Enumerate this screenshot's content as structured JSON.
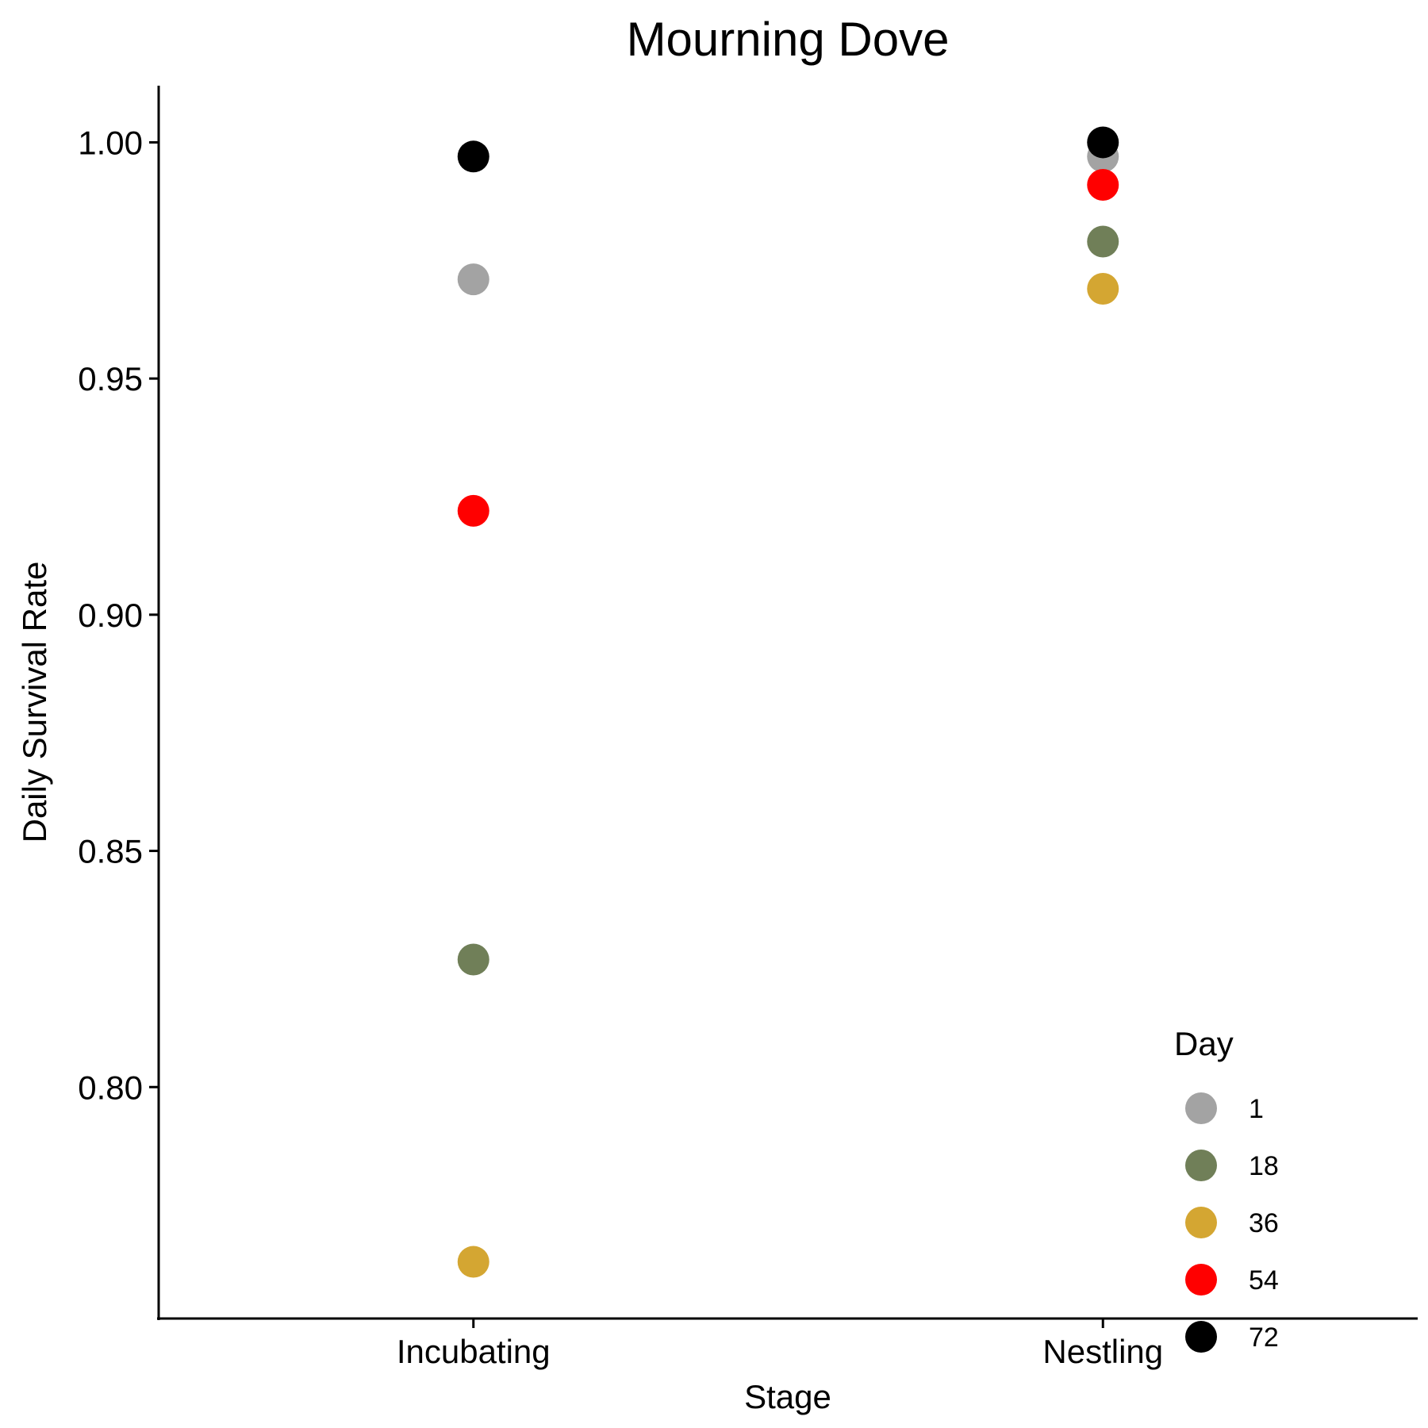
{
  "chart_data": {
    "type": "scatter",
    "title": "Mourning Dove",
    "xlabel": "Stage",
    "ylabel": "Daily Survival Rate",
    "categories": [
      "Incubating",
      "Nestling"
    ],
    "ylim": [
      0.751,
      1.012
    ],
    "yticks": [
      "0.80",
      "0.85",
      "0.90",
      "0.95",
      "1.00"
    ],
    "grid": false,
    "legend": {
      "title": "Day",
      "position": "bottom-right"
    },
    "series": [
      {
        "name": "1",
        "color": "#A3A3A3",
        "values": [
          0.971,
          0.997
        ]
      },
      {
        "name": "18",
        "color": "#707F58",
        "values": [
          0.827,
          0.979
        ]
      },
      {
        "name": "36",
        "color": "#D4A632",
        "values": [
          0.763,
          0.969
        ]
      },
      {
        "name": "54",
        "color": "#FF0000",
        "values": [
          0.922,
          0.991
        ]
      },
      {
        "name": "72",
        "color": "#000000",
        "values": [
          0.997,
          1.0
        ]
      }
    ]
  }
}
